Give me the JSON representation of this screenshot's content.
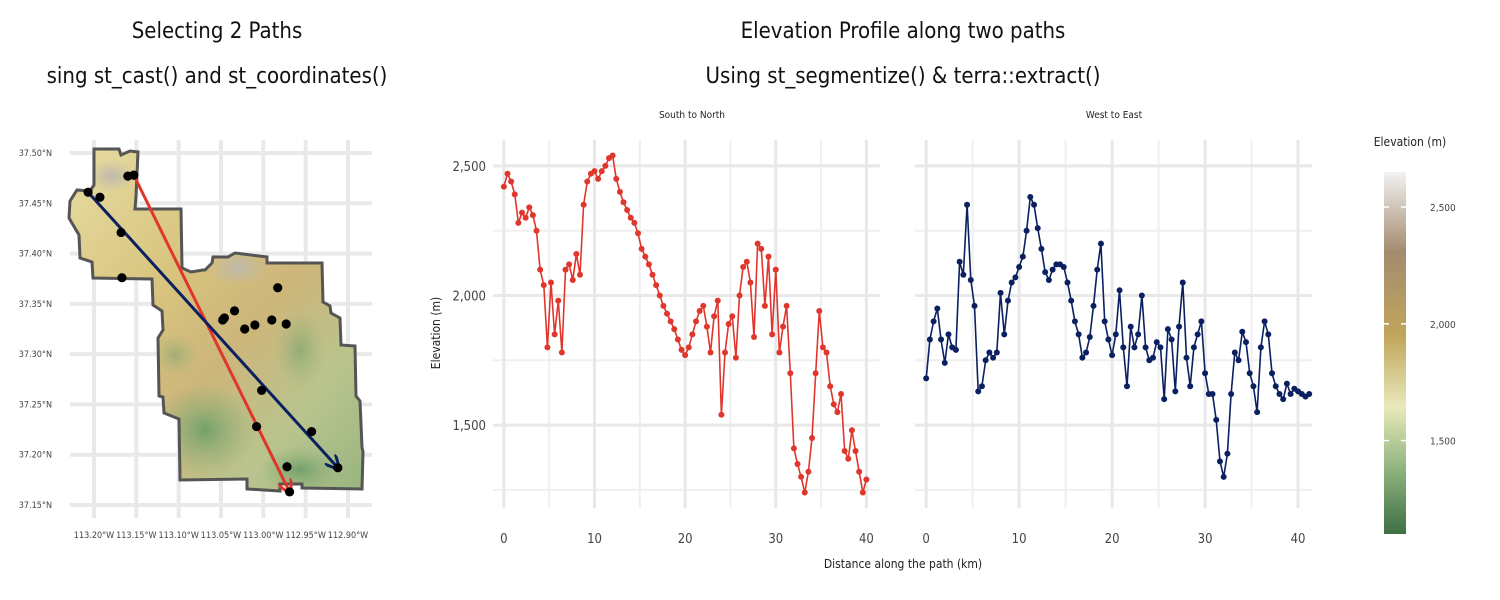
{
  "left_panel": {
    "title": "Selecting 2 Paths",
    "subtitle": "sing st_cast() and st_coordinates()",
    "lat_ticks": [
      "37.50°N",
      "37.45°N",
      "37.40°N",
      "37.35°N",
      "37.30°N",
      "37.25°N",
      "37.20°N",
      "37.15°N"
    ],
    "lon_ticks": [
      "113.20°W",
      "113.15°W",
      "113.10°W",
      "113.05°W",
      "113.00°W",
      "112.95°W",
      "112.90°W"
    ],
    "colors": {
      "south_to_north": "#e0362c",
      "west_to_east": "#0b2060",
      "boundary": "#555555"
    }
  },
  "right_panel": {
    "title": "Elevation Profile along two paths",
    "subtitle": "Using st_segmentize() & terra::extract()",
    "xlabel": "Distance along the path (km)",
    "ylabel": "Elevation (m)",
    "facets": [
      "South to North",
      "West to East"
    ],
    "x_ticks": [
      "0",
      "10",
      "20",
      "30",
      "40"
    ],
    "y_ticks": [
      "1,500",
      "2,000",
      "2,500"
    ]
  },
  "legend": {
    "title": "Elevation (m)",
    "ticks": [
      "1,500",
      "2,000",
      "2,500"
    ]
  },
  "chart_data": [
    {
      "type": "scatter",
      "title": "Selecting 2 Paths",
      "subtitle": "sing st_cast() and st_coordinates()",
      "xlim": [
        -113.23,
        -112.87
      ],
      "ylim": [
        37.14,
        37.51
      ],
      "points": [
        {
          "lon": -113.207,
          "lat": 37.461
        },
        {
          "lon": -113.193,
          "lat": 37.456
        },
        {
          "lon": -113.168,
          "lat": 37.421
        },
        {
          "lon": -113.167,
          "lat": 37.376
        },
        {
          "lon": -113.16,
          "lat": 37.477
        },
        {
          "lon": -113.153,
          "lat": 37.478
        },
        {
          "lon": -113.048,
          "lat": 37.334
        },
        {
          "lon": -113.046,
          "lat": 37.336
        },
        {
          "lon": -113.034,
          "lat": 37.343
        },
        {
          "lon": -113.022,
          "lat": 37.325
        },
        {
          "lon": -113.01,
          "lat": 37.329
        },
        {
          "lon": -113.002,
          "lat": 37.264
        },
        {
          "lon": -113.008,
          "lat": 37.228
        },
        {
          "lon": -112.99,
          "lat": 37.334
        },
        {
          "lon": -112.983,
          "lat": 37.366
        },
        {
          "lon": -112.973,
          "lat": 37.33
        },
        {
          "lon": -112.972,
          "lat": 37.188
        },
        {
          "lon": -112.969,
          "lat": 37.163
        },
        {
          "lon": -112.943,
          "lat": 37.223
        },
        {
          "lon": -112.912,
          "lat": 37.187
        }
      ],
      "paths": [
        {
          "name": "South to North",
          "from": [
            -113.153,
            37.478
          ],
          "to": [
            -112.969,
            37.163
          ]
        },
        {
          "name": "West to East",
          "from": [
            -113.207,
            37.461
          ],
          "to": [
            -112.912,
            37.187
          ]
        }
      ]
    },
    {
      "type": "line",
      "title": "Elevation Profile along two paths",
      "subtitle": "Using st_segmentize() & terra::extract()",
      "xlabel": "Distance along the path (km)",
      "ylabel": "Elevation (m)",
      "xlim": [
        -1.2,
        41.5
      ],
      "ylim": [
        1180,
        2600
      ],
      "series": [
        {
          "name": "South to North",
          "x": [
            0,
            0.4,
            0.8,
            1.2,
            1.6,
            2.0,
            2.4,
            2.8,
            3.2,
            3.6,
            4.0,
            4.4,
            4.8,
            5.2,
            5.6,
            6.0,
            6.4,
            6.8,
            7.2,
            7.6,
            8.0,
            8.4,
            8.8,
            9.2,
            9.6,
            10.0,
            10.4,
            10.8,
            11.2,
            11.6,
            12.0,
            12.4,
            12.8,
            13.2,
            13.6,
            14.0,
            14.4,
            14.8,
            15.2,
            15.6,
            16.0,
            16.4,
            16.8,
            17.2,
            17.6,
            18.0,
            18.4,
            18.8,
            19.2,
            19.6,
            20.0,
            20.4,
            20.8,
            21.2,
            21.6,
            22.0,
            22.4,
            22.8,
            23.2,
            23.6,
            24.0,
            24.4,
            24.8,
            25.2,
            25.6,
            26.0,
            26.4,
            26.8,
            27.2,
            27.6,
            28.0,
            28.4,
            28.8,
            29.2,
            29.6,
            30.0,
            30.4,
            30.8,
            31.2,
            31.6,
            32.0,
            32.4,
            32.8,
            33.2,
            33.6,
            34.0,
            34.4,
            34.8,
            35.2,
            35.6,
            36.0,
            36.4,
            36.8,
            37.2,
            37.6,
            38.0,
            38.4,
            38.8,
            39.2,
            39.6,
            40.0
          ],
          "y": [
            2420,
            2470,
            2440,
            2390,
            2280,
            2320,
            2300,
            2340,
            2310,
            2250,
            2100,
            2040,
            1800,
            2050,
            1850,
            1980,
            1780,
            2100,
            2120,
            2060,
            2160,
            2080,
            2350,
            2440,
            2470,
            2480,
            2450,
            2480,
            2500,
            2530,
            2540,
            2450,
            2400,
            2360,
            2330,
            2300,
            2280,
            2240,
            2180,
            2150,
            2120,
            2080,
            2040,
            2000,
            1960,
            1930,
            1900,
            1870,
            1830,
            1790,
            1770,
            1800,
            1850,
            1900,
            1940,
            1960,
            1880,
            1780,
            1920,
            1980,
            1540,
            1780,
            1890,
            1920,
            1760,
            2000,
            2110,
            2130,
            2050,
            1840,
            2200,
            2180,
            1960,
            2150,
            1850,
            2100,
            1780,
            1880,
            1960,
            1700,
            1410,
            1350,
            1300,
            1240,
            1320,
            1450,
            1700,
            1940,
            1800,
            1780,
            1650,
            1580,
            1550,
            1620,
            1400,
            1370,
            1480,
            1400,
            1320,
            1240,
            1290
          ]
        },
        {
          "name": "West to East",
          "x": [
            0,
            0.4,
            0.8,
            1.2,
            1.6,
            2.0,
            2.4,
            2.8,
            3.2,
            3.6,
            4.0,
            4.4,
            4.8,
            5.2,
            5.6,
            6.0,
            6.4,
            6.8,
            7.2,
            7.6,
            8.0,
            8.4,
            8.8,
            9.2,
            9.6,
            10.0,
            10.4,
            10.8,
            11.2,
            11.6,
            12.0,
            12.4,
            12.8,
            13.2,
            13.6,
            14.0,
            14.4,
            14.8,
            15.2,
            15.6,
            16.0,
            16.4,
            16.8,
            17.2,
            17.6,
            18.0,
            18.4,
            18.8,
            19.2,
            19.6,
            20.0,
            20.4,
            20.8,
            21.2,
            21.6,
            22.0,
            22.4,
            22.8,
            23.2,
            23.6,
            24.0,
            24.4,
            24.8,
            25.2,
            25.6,
            26.0,
            26.4,
            26.8,
            27.2,
            27.6,
            28.0,
            28.4,
            28.8,
            29.2,
            29.6,
            30.0,
            30.4,
            30.8,
            31.2,
            31.6,
            32.0,
            32.4,
            32.8,
            33.2,
            33.6,
            34.0,
            34.4,
            34.8,
            35.2,
            35.6,
            36.0,
            36.4,
            36.8,
            37.2,
            37.6,
            38.0,
            38.4,
            38.8,
            39.2,
            39.6,
            40.0,
            40.4,
            40.8,
            41.2
          ],
          "y": [
            1680,
            1830,
            1900,
            1950,
            1830,
            1740,
            1850,
            1800,
            1790,
            2130,
            2080,
            2350,
            2060,
            1960,
            1630,
            1650,
            1750,
            1780,
            1760,
            1780,
            2010,
            1850,
            1980,
            2050,
            2070,
            2110,
            2150,
            2250,
            2380,
            2350,
            2260,
            2180,
            2090,
            2060,
            2100,
            2120,
            2120,
            2110,
            2050,
            1980,
            1900,
            1850,
            1760,
            1780,
            1840,
            1960,
            2100,
            2200,
            1900,
            1830,
            1770,
            1850,
            2020,
            1800,
            1650,
            1880,
            1800,
            1850,
            2000,
            1800,
            1750,
            1760,
            1820,
            1800,
            1600,
            1870,
            1830,
            1630,
            1880,
            2050,
            1760,
            1650,
            1800,
            1850,
            1900,
            1700,
            1620,
            1620,
            1520,
            1360,
            1300,
            1390,
            1620,
            1780,
            1750,
            1860,
            1820,
            1700,
            1650,
            1550,
            1800,
            1900,
            1850,
            1700,
            1650,
            1620,
            1600,
            1660,
            1620,
            1640,
            1630,
            1620,
            1610,
            1620
          ]
        }
      ]
    }
  ]
}
